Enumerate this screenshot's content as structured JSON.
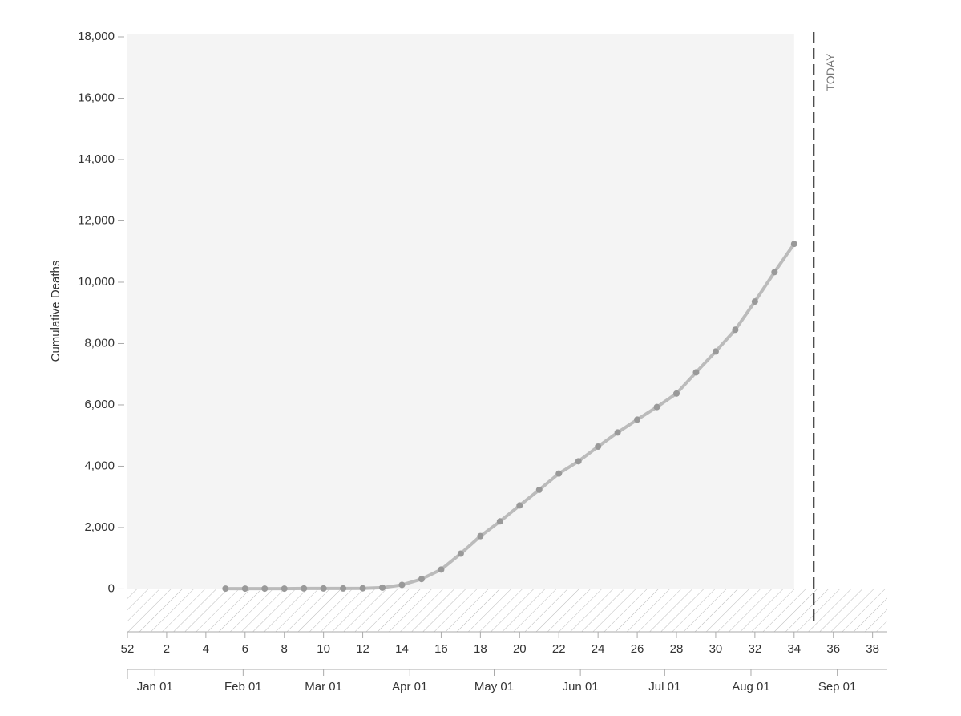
{
  "chart_data": {
    "type": "line",
    "y_label": "Cumulative Deaths",
    "x": [
      5,
      6,
      7,
      8,
      9,
      10,
      11,
      12,
      13,
      14,
      15,
      16,
      17,
      18,
      19,
      20,
      21,
      22,
      23,
      24,
      25,
      26,
      27,
      28,
      29,
      30,
      31,
      32,
      33,
      34
    ],
    "values": [
      10,
      10,
      10,
      10,
      15,
      15,
      15,
      20,
      40,
      130,
      320,
      630,
      1150,
      1720,
      2200,
      2720,
      3230,
      3760,
      4160,
      4640,
      5100,
      5520,
      5930,
      6370,
      7060,
      7740,
      8450,
      9370,
      10330,
      11250
    ],
    "color": "#bbbbbb",
    "marker_color": "#999999",
    "xlim": [
      0,
      38.75
    ],
    "xticks": [
      {
        "value": 0,
        "label": "52"
      },
      2,
      4,
      6,
      8,
      10,
      12,
      14,
      16,
      18,
      20,
      22,
      24,
      26,
      28,
      30,
      32,
      34,
      36,
      38
    ],
    "x2ticks": [
      {
        "value": 1.4,
        "label": "Jan 01"
      },
      {
        "value": 5.9,
        "label": "Feb 01"
      },
      {
        "value": 10.0,
        "label": "Mar 01"
      },
      {
        "value": 14.4,
        "label": "Apr 01"
      },
      {
        "value": 18.7,
        "label": "May 01"
      },
      {
        "value": 23.1,
        "label": "Jun 01"
      },
      {
        "value": 27.4,
        "label": "Jul 01"
      },
      {
        "value": 31.8,
        "label": "Aug 01"
      },
      {
        "value": 36.2,
        "label": "Sep 01"
      }
    ],
    "ylim": [
      -1400,
      18000
    ],
    "yticks": [
      0,
      {
        "value": 2000,
        "label": "2,000"
      },
      {
        "value": 4000,
        "label": "4,000"
      },
      {
        "value": 6000,
        "label": "6,000"
      },
      {
        "value": 8000,
        "label": "8,000"
      },
      {
        "value": 10000,
        "label": "10,000"
      },
      {
        "value": 12000,
        "label": "12,000"
      },
      {
        "value": 14000,
        "label": "14,000"
      },
      {
        "value": 16000,
        "label": "16,000"
      },
      {
        "value": 18000,
        "label": "18,000"
      }
    ],
    "today": {
      "value": 35,
      "label": "TODAY"
    }
  }
}
